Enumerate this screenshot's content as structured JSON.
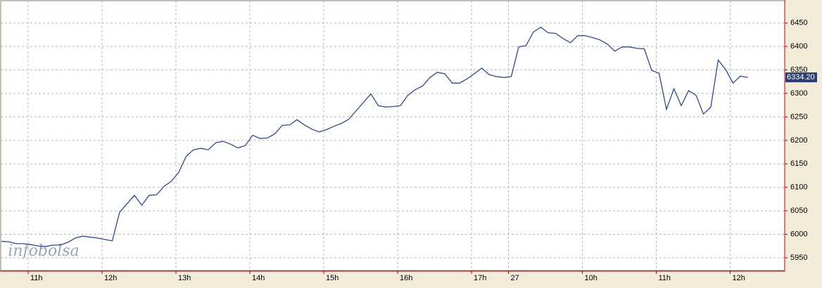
{
  "chart_data": {
    "type": "line",
    "watermark": "infobolsa",
    "categories": [
      null,
      null,
      null,
      null,
      "11h",
      null,
      null,
      null,
      null,
      null,
      null,
      null,
      null,
      null,
      "12h",
      null,
      null,
      null,
      null,
      null,
      null,
      null,
      null,
      null,
      "13h",
      null,
      null,
      null,
      null,
      null,
      null,
      null,
      null,
      null,
      "14h",
      null,
      null,
      null,
      null,
      null,
      null,
      null,
      null,
      null,
      "15h",
      null,
      null,
      null,
      null,
      null,
      null,
      null,
      null,
      null,
      "16h",
      null,
      null,
      null,
      null,
      null,
      null,
      null,
      null,
      null,
      "17h",
      null,
      null,
      null,
      null,
      "27",
      null,
      null,
      null,
      null,
      null,
      null,
      null,
      null,
      null,
      "10h",
      null,
      null,
      null,
      null,
      null,
      null,
      null,
      null,
      null,
      "11h",
      null,
      null,
      null,
      null,
      null,
      null,
      null,
      null,
      null,
      "12h",
      null,
      null
    ],
    "series": [
      {
        "color": "#2e4a8e",
        "values": [
          5985,
          5984,
          5980,
          5980,
          5978,
          5975,
          5974,
          5977,
          5977,
          5983,
          5992,
          5996,
          5994,
          5992,
          5989,
          5986,
          6047,
          6065,
          6083,
          6062,
          6083,
          6084,
          6102,
          6113,
          6132,
          6166,
          6180,
          6183,
          6180,
          6195,
          6198,
          6192,
          6184,
          6189,
          6211,
          6204,
          6205,
          6214,
          6232,
          6233,
          6244,
          6233,
          6224,
          6218,
          6223,
          6230,
          6236,
          6245,
          6263,
          6281,
          6299,
          6274,
          6271,
          6272,
          6274,
          6296,
          6308,
          6316,
          6334,
          6345,
          6342,
          6322,
          6322,
          6331,
          6342,
          6354,
          6340,
          6336,
          6334,
          6336,
          6399,
          6402,
          6431,
          6441,
          6429,
          6428,
          6417,
          6408,
          6423,
          6423,
          6419,
          6414,
          6405,
          6390,
          6399,
          6399,
          6396,
          6395,
          6349,
          6343,
          6266,
          6310,
          6274,
          6306,
          6296,
          6256,
          6271,
          6371,
          6351,
          6322,
          6337,
          6334
        ]
      }
    ],
    "last_price": {
      "value": 6334.2,
      "label": "6334.20"
    },
    "ylim": [
      5923,
      6496
    ],
    "yticks": [
      5950,
      6000,
      6050,
      6100,
      6150,
      6200,
      6250,
      6300,
      6350,
      6400,
      6450
    ],
    "grid": true
  }
}
